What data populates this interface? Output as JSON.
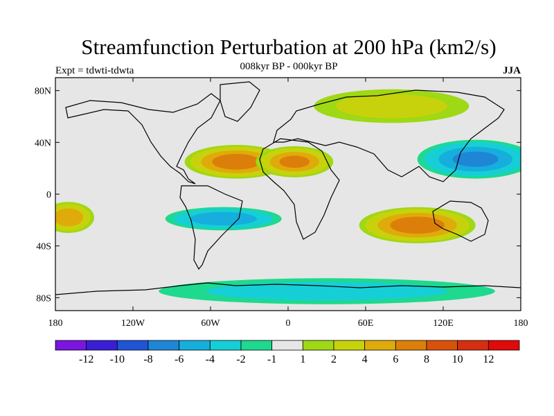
{
  "title": "Streamfunction Perturbation at 200 hPa (km2/s)",
  "subtitle": "008kyr BP - 000kyr BP",
  "left_label": "Expt = tdwti-tdwta",
  "right_label": "JJA",
  "colors": {
    "land": "#e6e6e6",
    "palette": [
      "#7b15e0",
      "#3a1ed6",
      "#1f55d4",
      "#1f86d6",
      "#16aedc",
      "#16cfd6",
      "#1ed98e",
      "#e6e6e6",
      "#9fd814",
      "#c8d20c",
      "#dfab0a",
      "#dc7f0a",
      "#d8520c",
      "#d62e10",
      "#e00a0a"
    ]
  },
  "chart_data": {
    "type": "heatmap",
    "projection": "cylindrical-equidistant",
    "title": "Streamfunction Perturbation at 200 hPa (km2/s)",
    "lon_range": [
      -180,
      180
    ],
    "lat_range": [
      -90,
      90
    ],
    "x_ticks": [
      {
        "value": -180,
        "label": "180"
      },
      {
        "value": -120,
        "label": "120W"
      },
      {
        "value": -60,
        "label": "60W"
      },
      {
        "value": 0,
        "label": "0"
      },
      {
        "value": 60,
        "label": "60E"
      },
      {
        "value": 120,
        "label": "120E"
      },
      {
        "value": 180,
        "label": "180"
      }
    ],
    "y_ticks": [
      {
        "value": 80,
        "label": "80N"
      },
      {
        "value": 40,
        "label": "40N"
      },
      {
        "value": 0,
        "label": "0"
      },
      {
        "value": -40,
        "label": "40S"
      },
      {
        "value": -80,
        "label": "80S"
      }
    ],
    "contour_levels": [
      -12,
      -10,
      -8,
      -6,
      -4,
      -2,
      -1,
      1,
      2,
      4,
      6,
      8,
      10,
      12
    ],
    "colorbar_labels": [
      "-12",
      "-10",
      "-8",
      "-6",
      "-4",
      "-2",
      "-1",
      "1",
      "2",
      "4",
      "6",
      "8",
      "10",
      "12"
    ],
    "features": [
      {
        "name": "North Atlantic / Africa anticyclone",
        "lon": -40,
        "lat": 25,
        "rx": 40,
        "ry": 13,
        "value": 7
      },
      {
        "name": "North Africa high",
        "lon": 5,
        "lat": 25,
        "rx": 30,
        "ry": 12,
        "value": 6
      },
      {
        "name": "West Pacific low",
        "lon": 145,
        "lat": 27,
        "rx": 45,
        "ry": 15,
        "value": -6
      },
      {
        "name": "South Atlantic low",
        "lon": -50,
        "lat": -19,
        "rx": 45,
        "ry": 9,
        "value": -5
      },
      {
        "name": "Indian Ocean / Australia high",
        "lon": 100,
        "lat": -24,
        "rx": 45,
        "ry": 14,
        "value": 7
      },
      {
        "name": "South Pacific high",
        "lon": -170,
        "lat": -18,
        "rx": 20,
        "ry": 12,
        "value": 5
      },
      {
        "name": "Southern Ocean low",
        "lon": 30,
        "lat": -75,
        "rx": 130,
        "ry": 10,
        "value": -2
      },
      {
        "name": "Arctic ridge",
        "lon": 80,
        "lat": 68,
        "rx": 60,
        "ry": 13,
        "value": 2
      }
    ]
  }
}
